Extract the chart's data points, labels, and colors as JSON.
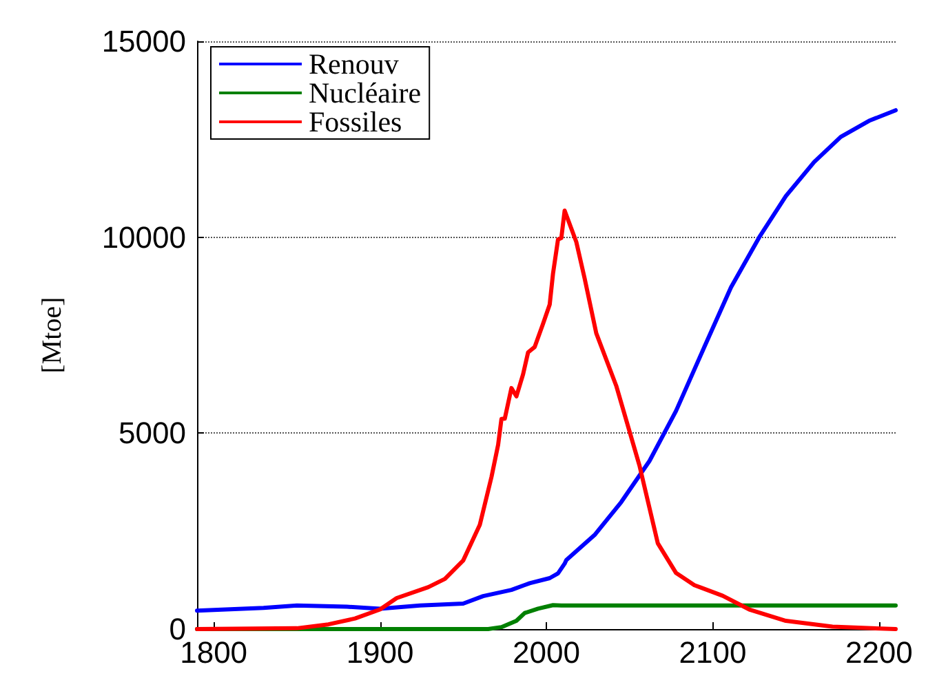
{
  "chart_data": {
    "type": "line",
    "ylabel": "[Mtoe]",
    "xlim": [
      1790,
      2210
    ],
    "xticks": [
      1800,
      1900,
      2000,
      2100,
      2200
    ],
    "ylim": [
      0,
      15000
    ],
    "yticks": [
      0,
      5000,
      10000,
      15000
    ],
    "grid": "y",
    "legend": "top left",
    "marker": "none",
    "line_style": "solid",
    "series": [
      {
        "name": "Renouv",
        "color": "#0000ff",
        "x": [
          1790,
          1830,
          1850,
          1880,
          1900,
          1924,
          1950,
          1962,
          1979,
          1990,
          2002,
          2007,
          2011,
          2012,
          2029,
          2045,
          2062,
          2078,
          2095,
          2111,
          2128,
          2144,
          2161,
          2177,
          2194,
          2210
        ],
        "values": [
          470,
          540,
          600,
          570,
          520,
          600,
          650,
          840,
          1000,
          1170,
          1300,
          1420,
          1670,
          1760,
          2400,
          3240,
          4290,
          5570,
          7200,
          8720,
          10000,
          11050,
          11920,
          12560,
          12970,
          13240
        ]
      },
      {
        "name": "Nucléaire",
        "color": "#008000",
        "x": [
          1790,
          1965,
          1973,
          1982,
          1987,
          1995,
          2004,
          2009,
          2210
        ],
        "values": [
          0,
          0,
          50,
          210,
          410,
          520,
          610,
          600,
          600
        ]
      },
      {
        "name": "Fossiles",
        "color": "#ff0000",
        "x": [
          1790,
          1850,
          1869,
          1885,
          1900,
          1910,
          1929,
          1939,
          1950,
          1960,
          1967,
          1971,
          1973,
          1975,
          1979,
          1982,
          1986,
          1989,
          1993,
          1998,
          2002,
          2004,
          2007,
          2009,
          2011,
          2018,
          2023,
          2030,
          2042,
          2056,
          2067,
          2078,
          2089,
          2106,
          2122,
          2144,
          2172,
          2210
        ],
        "values": [
          0,
          20,
          120,
          270,
          500,
          790,
          1070,
          1280,
          1750,
          2660,
          3880,
          4700,
          5360,
          5370,
          6150,
          5940,
          6500,
          7060,
          7200,
          7790,
          8280,
          9070,
          9940,
          9980,
          10680,
          9880,
          8950,
          7550,
          6210,
          4170,
          2190,
          1430,
          1120,
          850,
          500,
          210,
          60,
          0
        ]
      }
    ]
  }
}
